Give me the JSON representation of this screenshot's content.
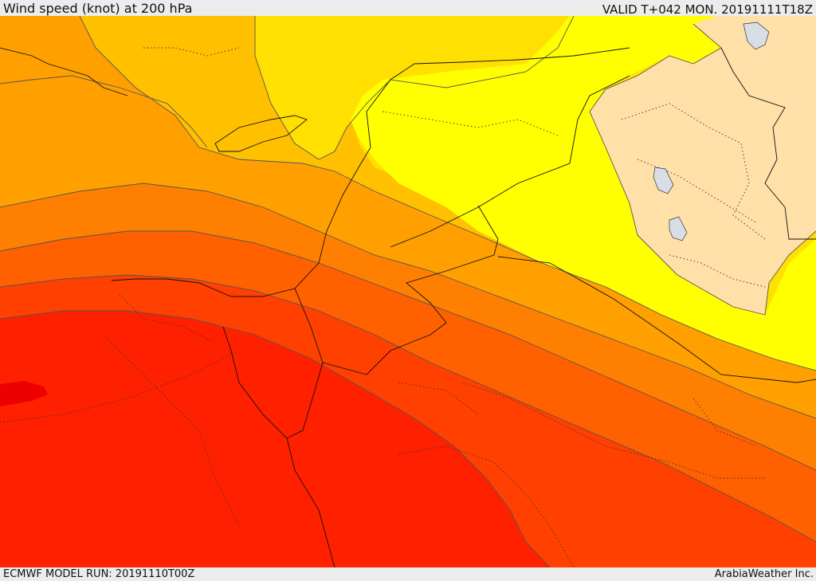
{
  "header": {
    "title": "Wind speed (knot) at 200 hPa",
    "valid": "VALID T+042 MON. 20191111T18Z"
  },
  "footer": {
    "model_run": "ECMWF MODEL RUN: 20191110T00Z",
    "credit": "ArabiaWeather Inc."
  },
  "colors": {
    "band_1": "#ffe0a8",
    "band_2": "#ffff00",
    "band_3": "#ffe000",
    "band_4": "#ffc000",
    "band_5": "#ffa000",
    "band_6": "#ff8000",
    "band_7": "#ff6000",
    "band_8": "#ff4000",
    "band_9": "#ff2000",
    "band_10": "#ee0000",
    "lakes": "#d8dde6"
  }
}
